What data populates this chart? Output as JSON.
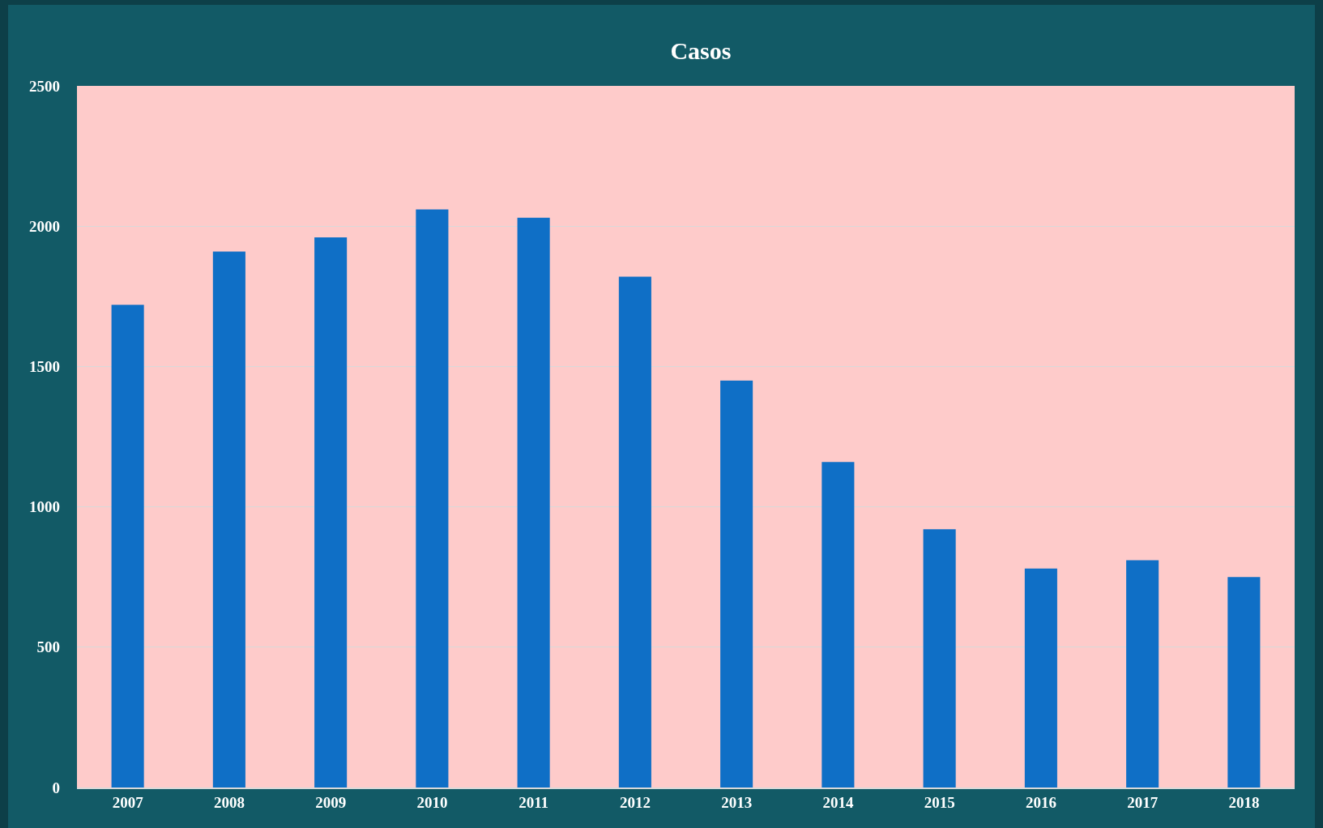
{
  "chart_data": {
    "type": "bar",
    "title": "Casos",
    "categories": [
      "2007",
      "2008",
      "2009",
      "2010",
      "2011",
      "2012",
      "2013",
      "2014",
      "2015",
      "2016",
      "2017",
      "2018"
    ],
    "values": [
      1720,
      1910,
      1960,
      2060,
      2030,
      1820,
      1450,
      1160,
      920,
      780,
      810,
      750
    ],
    "color": "#0f6fc6",
    "ylim": [
      0,
      2500
    ],
    "yticks": [
      0,
      500,
      1000,
      1500,
      2000,
      2500
    ],
    "grid": "y"
  }
}
